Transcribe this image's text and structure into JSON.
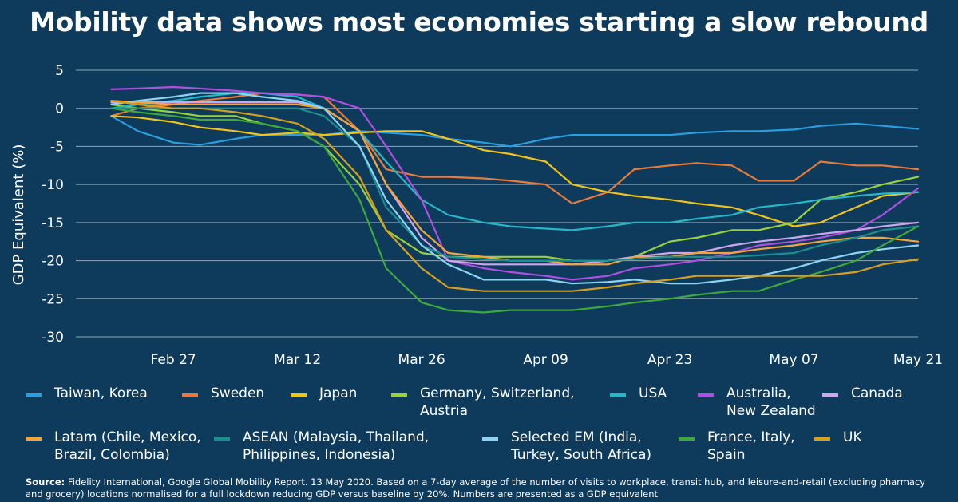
{
  "title": "Mobility data shows most economies starting a slow rebound",
  "source": {
    "label": "Source:",
    "text": "Fidelity International, Google Global Mobility Report. 13 May 2020. Based on a 7-day average of the number of visits to workplace, transit hub, and leisure-and-retail (excluding pharmacy and grocery) locations normalised for a full lockdown reducing GDP versus baseline by 20%. Numbers are presented as a GDP equivalent"
  },
  "chart_data": {
    "type": "line",
    "title": "Mobility data shows most economies starting a slow rebound",
    "xlabel": "",
    "ylabel": "GDP Equivalent (%)",
    "ylim": [
      -30,
      5
    ],
    "yticks": [
      5,
      0,
      -5,
      -10,
      -15,
      -20,
      -25,
      -30
    ],
    "grid": true,
    "legend_position": "bottom",
    "x_dates": [
      "2020-02-20",
      "2020-02-23",
      "2020-02-27",
      "2020-03-01",
      "2020-03-05",
      "2020-03-08",
      "2020-03-12",
      "2020-03-15",
      "2020-03-19",
      "2020-03-22",
      "2020-03-26",
      "2020-03-29",
      "2020-04-02",
      "2020-04-05",
      "2020-04-09",
      "2020-04-12",
      "2020-04-16",
      "2020-04-19",
      "2020-04-23",
      "2020-04-26",
      "2020-04-30",
      "2020-05-03",
      "2020-05-07",
      "2020-05-10",
      "2020-05-14",
      "2020-05-17",
      "2020-05-21"
    ],
    "x_ticks": [
      {
        "date": "2020-02-27",
        "label": "Feb 27"
      },
      {
        "date": "2020-03-12",
        "label": "Mar 12"
      },
      {
        "date": "2020-03-26",
        "label": "Mar 26"
      },
      {
        "date": "2020-04-09",
        "label": "Apr 09"
      },
      {
        "date": "2020-04-23",
        "label": "Apr 23"
      },
      {
        "date": "2020-05-07",
        "label": "May 07"
      },
      {
        "date": "2020-05-21",
        "label": "May 21"
      }
    ],
    "series": [
      {
        "name": "Taiwan, Korea",
        "color": "#2a9fe0",
        "values": [
          -1,
          -3,
          -4.5,
          -4.8,
          -4,
          -3.5,
          -3.5,
          -3.5,
          -3,
          -3.2,
          -3.5,
          -4,
          -4.5,
          -5,
          -4,
          -3.5,
          -3.5,
          -3.5,
          -3.5,
          -3.2,
          -3,
          -3,
          -2.8,
          -2.3,
          -2,
          -2.3,
          -2.7
        ]
      },
      {
        "name": "Sweden",
        "color": "#e87b3a",
        "values": [
          -1,
          0,
          0.5,
          1,
          1.5,
          2,
          1.8,
          1.5,
          -3,
          -8,
          -9,
          -9,
          -9.2,
          -9.5,
          -10,
          -12.5,
          -11,
          -8,
          -7.5,
          -7.2,
          -7.5,
          -9.5,
          -9.5,
          -7,
          -7.5,
          -7.5,
          -8
        ]
      },
      {
        "name": "Japan",
        "color": "#f2c318",
        "values": [
          -1,
          -1.2,
          -1.8,
          -2.5,
          -3,
          -3.5,
          -3.2,
          -3.5,
          -3.2,
          -3,
          -3,
          -4,
          -5.5,
          -6,
          -7,
          -10,
          -11,
          -11.5,
          -12,
          -12.5,
          -13,
          -14,
          -15.5,
          -15,
          -13,
          -11.5,
          -11
        ]
      },
      {
        "name": "Germany, Switzerland, Austria",
        "color": "#9bd23c",
        "values": [
          0.5,
          0,
          -0.5,
          -1,
          -1,
          -2,
          -3,
          -5,
          -10,
          -16,
          -19,
          -19.5,
          -19.5,
          -19.5,
          -19.5,
          -20,
          -20,
          -19.5,
          -17.5,
          -17,
          -16,
          -16,
          -15,
          -12,
          -11,
          -10,
          -9
        ]
      },
      {
        "name": "USA",
        "color": "#22b8c9",
        "values": [
          0,
          0.5,
          1,
          1.5,
          2,
          2,
          1.5,
          0,
          -3,
          -7,
          -12,
          -14,
          -15,
          -15.5,
          -15.8,
          -16,
          -15.5,
          -15,
          -15,
          -14.5,
          -14,
          -13,
          -12.5,
          -12,
          -11.5,
          -11.2,
          -11
        ]
      },
      {
        "name": "Australia, New Zealand",
        "color": "#b04fe0",
        "values": [
          2.5,
          2.6,
          2.8,
          2.6,
          2.3,
          2,
          1.8,
          1.5,
          0,
          -5,
          -12,
          -20,
          -21,
          -21.5,
          -22,
          -22.5,
          -22,
          -21,
          -20.5,
          -20,
          -19,
          -18,
          -17.5,
          -17,
          -16,
          -14,
          -10.5
        ]
      },
      {
        "name": "Canada",
        "color": "#cfa6ec",
        "values": [
          0.8,
          0.8,
          0.8,
          0.8,
          0.8,
          0.8,
          0.8,
          0,
          -3,
          -10,
          -17,
          -20,
          -20.5,
          -20.5,
          -20.5,
          -20.5,
          -20,
          -19.5,
          -19,
          -19,
          -18,
          -17.5,
          -17,
          -16.5,
          -16,
          -15.5,
          -15
        ]
      },
      {
        "name": "Latam (Chile, Mexico, Brazil, Colombia)",
        "color": "#f6a43a",
        "values": [
          1,
          0.8,
          0.5,
          0.5,
          0.5,
          0.5,
          0.5,
          0,
          -3,
          -10,
          -16,
          -19,
          -19.5,
          -20,
          -20,
          -20.5,
          -20.5,
          -19.5,
          -19.5,
          -19,
          -19,
          -18.5,
          -18,
          -17.5,
          -17,
          -17,
          -17.5
        ]
      },
      {
        "name": "ASEAN (Malaysia, Thailand, Philippines, Indonesia)",
        "color": "#1b8e8e",
        "values": [
          0,
          0,
          0,
          0,
          0,
          0,
          0,
          -1,
          -5,
          -13,
          -18,
          -19.5,
          -19.8,
          -20,
          -20,
          -20,
          -20,
          -19.8,
          -19.5,
          -19.5,
          -19.5,
          -19.3,
          -19,
          -18,
          -17,
          -16,
          -15.5
        ]
      },
      {
        "name": "Selected EM (India, Turkey, South Africa)",
        "color": "#8fd3f4",
        "values": [
          0.5,
          1,
          1.5,
          2,
          2,
          1.5,
          1,
          0,
          -5,
          -12,
          -18,
          -20.5,
          -22.5,
          -22.5,
          -22.5,
          -23,
          -22.8,
          -22.5,
          -23,
          -23,
          -22.5,
          -22,
          -21,
          -20,
          -19,
          -18.5,
          -18
        ]
      },
      {
        "name": "France, Italy, Spain",
        "color": "#3fa93a",
        "values": [
          0,
          -0.5,
          -1,
          -1.5,
          -1.5,
          -2,
          -3,
          -5,
          -12,
          -21,
          -25.5,
          -26.5,
          -26.8,
          -26.5,
          -26.5,
          -26.5,
          -26,
          -25.5,
          -25,
          -24.5,
          -24,
          -24,
          -22.5,
          -21.5,
          -20,
          -18,
          -15.5
        ]
      },
      {
        "name": "UK",
        "color": "#d6a01f",
        "values": [
          1,
          0.5,
          0,
          0,
          -0.5,
          -1,
          -2,
          -4,
          -9,
          -16,
          -21,
          -23.5,
          -24,
          -24,
          -24,
          -24,
          -23.5,
          -23,
          -22.5,
          -22,
          -22,
          -22,
          -22,
          -22,
          -21.5,
          -20.5,
          -19.8
        ]
      }
    ]
  },
  "legend_labels": [
    "Taiwan, Korea",
    "Sweden",
    "Japan",
    "Germany, Switzerland,\nAustria",
    "USA",
    "Australia,\nNew Zealand",
    "Canada",
    "Latam (Chile, Mexico,\nBrazil, Colombia)",
    "ASEAN (Malaysia, Thailand,\nPhilippines, Indonesia)",
    "Selected EM (India,\nTurkey, South Africa)",
    "France, Italy,\nSpain",
    "UK"
  ]
}
